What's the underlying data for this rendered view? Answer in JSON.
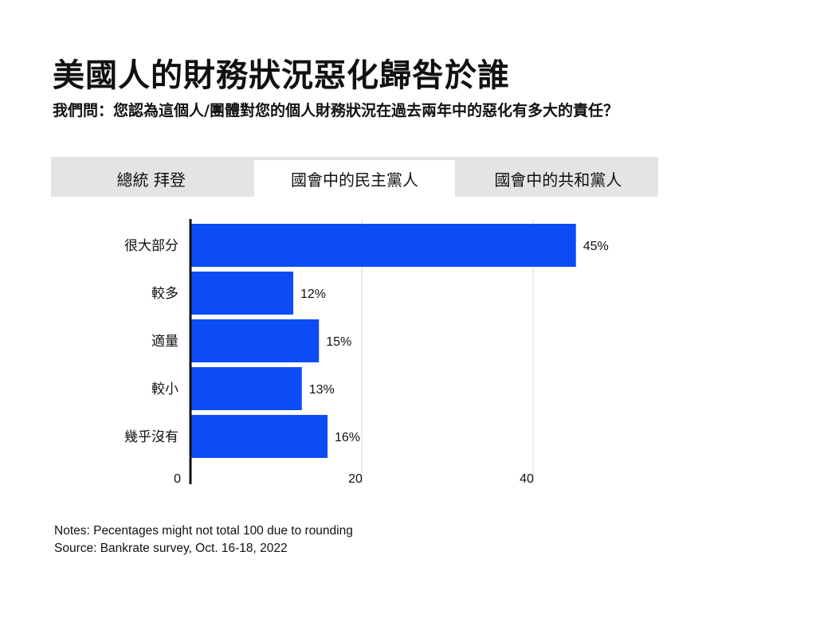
{
  "header": {
    "title": "美國人的財務狀況惡化歸咎於誰",
    "subtitle": "我們問：您認為這個人/團體對您的個人財務狀況在過去兩年中的惡化有多大的責任？"
  },
  "tabs": [
    {
      "label": "總統 拜登",
      "active": false
    },
    {
      "label": "國會中的民主黨人",
      "active": true
    },
    {
      "label": "國會中的共和黨人",
      "active": false
    }
  ],
  "chart_data": {
    "type": "bar",
    "orientation": "horizontal",
    "categories": [
      "很大部分",
      "較多",
      "適量",
      "較小",
      "幾乎沒有"
    ],
    "values": [
      45,
      12,
      15,
      13,
      16
    ],
    "value_labels": [
      "45%",
      "12%",
      "15%",
      "13%",
      "16%"
    ],
    "xlim": [
      0,
      50
    ],
    "xticks": [
      0,
      20,
      40
    ],
    "tick_labels": [
      "0",
      "20",
      "40"
    ],
    "grid": true,
    "bar_color": "#0b4cf5",
    "axis_color": "#111111",
    "grid_color": "#d9d9d9"
  },
  "notes": {
    "line1": "Notes: Pecentages might not total 100 due to rounding",
    "line2": "Source: Bankrate survey, Oct. 16-18, 2022"
  }
}
